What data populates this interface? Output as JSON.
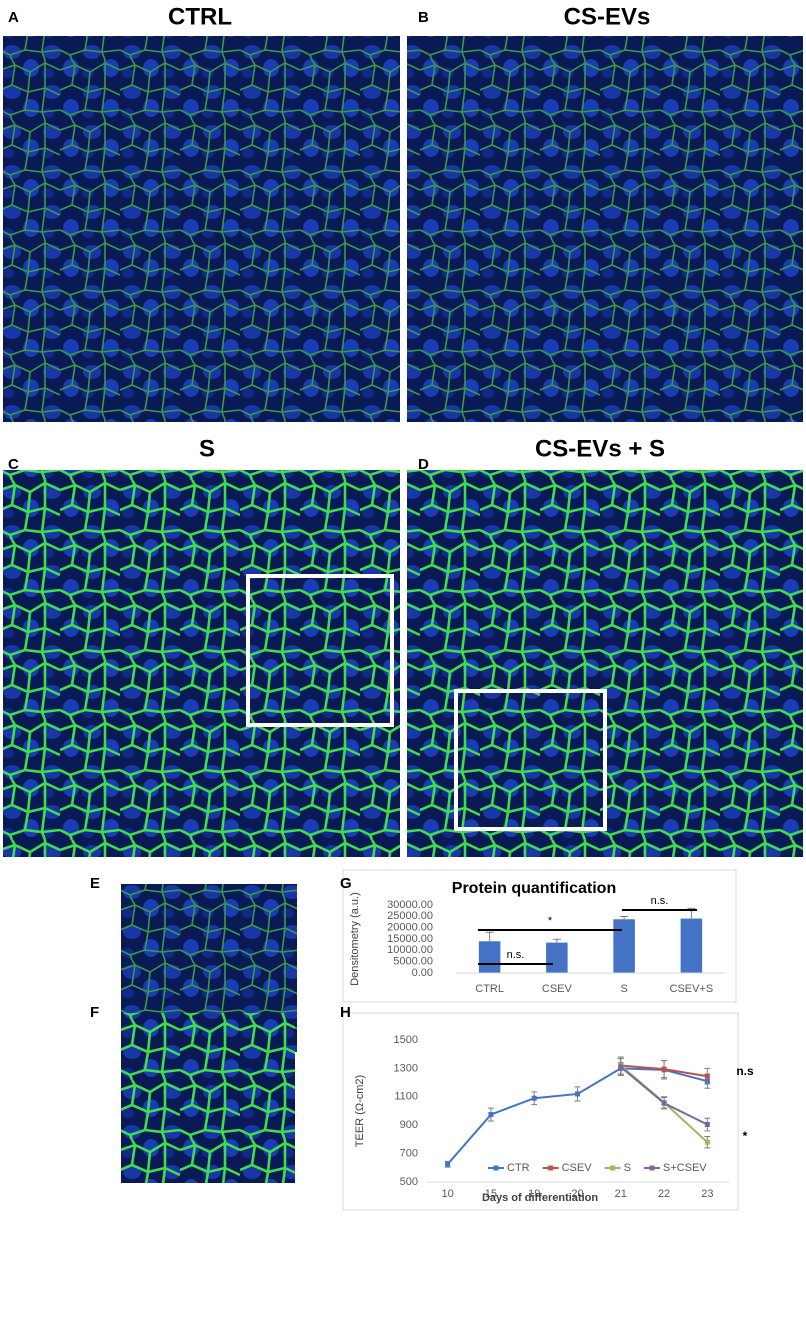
{
  "panels": [
    {
      "label": "A",
      "title": "CTRL"
    },
    {
      "label": "B",
      "title": "CS-EVs"
    },
    {
      "label": "C",
      "title": "S"
    },
    {
      "label": "D",
      "title": "CS-EVs + S"
    },
    {
      "label": "E"
    },
    {
      "label": "F"
    }
  ],
  "chart_data": [
    {
      "type": "bar",
      "label": "G",
      "title": "Protein quantification",
      "y_label": "Densitometry (a.u.)",
      "categories": [
        "CTRL",
        "CSEV",
        "S",
        "CSEV+S"
      ],
      "values": [
        14000,
        13400,
        23700,
        24000
      ],
      "errors": [
        4000,
        1500,
        1200,
        4500
      ],
      "color": "#4472c4",
      "ylim": [
        0,
        30000
      ],
      "yticks": [
        {
          "value": 0,
          "label": "0.00"
        },
        {
          "value": 5000,
          "label": "5000.00"
        },
        {
          "value": 10000,
          "label": "10000.00"
        },
        {
          "value": 15000,
          "label": "15000.00"
        },
        {
          "value": 20000,
          "label": "20000.00"
        },
        {
          "value": 25000,
          "label": "25000.00"
        },
        {
          "value": 30000,
          "label": "30000.00"
        }
      ],
      "annotations": [
        "n.s.",
        "*",
        "n.s."
      ]
    },
    {
      "type": "line",
      "label": "H",
      "x_label": "Days of differentiation",
      "y_label": "TEER (Ω-cm2)",
      "categories": [
        "10",
        "15",
        "19",
        "20",
        "21",
        "22",
        "23"
      ],
      "series": [
        {
          "name": "CTR",
          "color": "#4472c4",
          "values": [
            625,
            975,
            1090,
            1120,
            1300,
            1290,
            1210
          ],
          "errors": [
            20,
            45,
            45,
            50,
            40,
            65,
            50
          ]
        },
        {
          "name": "CSEV",
          "color": "#c0504d",
          "values": [
            null,
            null,
            null,
            null,
            1320,
            1295,
            1245
          ],
          "errors": [
            null,
            null,
            null,
            null,
            60,
            60,
            55
          ]
        },
        {
          "name": "S",
          "color": "#9bbb59",
          "values": [
            null,
            null,
            null,
            null,
            1320,
            1060,
            780
          ],
          "errors": [
            null,
            null,
            null,
            null,
            60,
            40,
            40
          ]
        },
        {
          "name": "S+CSEV",
          "color": "#8064a2",
          "values": [
            null,
            null,
            null,
            null,
            1310,
            1055,
            905
          ],
          "errors": [
            null,
            null,
            null,
            null,
            60,
            40,
            45
          ]
        }
      ],
      "ylim": [
        500,
        1500
      ],
      "yticks": [
        500,
        700,
        900,
        1100,
        1300,
        1500
      ],
      "legend": "bottom",
      "annotations": [
        "n.s",
        "*"
      ]
    }
  ]
}
